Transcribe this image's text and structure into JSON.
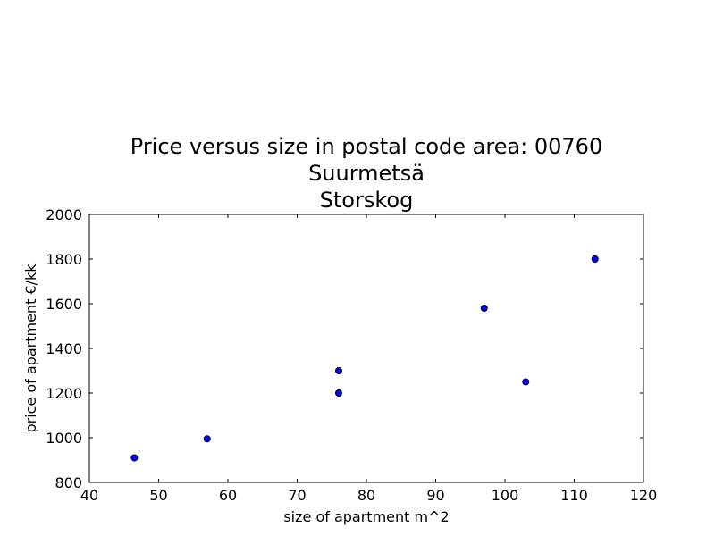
{
  "chart_data": {
    "type": "scatter",
    "title_lines": [
      "Price versus size in postal code area: 00760",
      "Suurmetsä",
      "Storskog"
    ],
    "xlabel": "size of apartment m^2",
    "ylabel": "price of apartment €/kk",
    "xlim": [
      40,
      120
    ],
    "ylim": [
      800,
      2000
    ],
    "x_ticks": [
      "40",
      "50",
      "60",
      "70",
      "80",
      "90",
      "100",
      "110",
      "120"
    ],
    "y_ticks": [
      "800",
      "1000",
      "1200",
      "1400",
      "1600",
      "1800",
      "2000"
    ],
    "grid": false,
    "marker_color": "#0000ff",
    "points": [
      {
        "x": 46.5,
        "y": 910
      },
      {
        "x": 57,
        "y": 995
      },
      {
        "x": 76,
        "y": 1200
      },
      {
        "x": 76,
        "y": 1300
      },
      {
        "x": 97,
        "y": 1580
      },
      {
        "x": 103,
        "y": 1250
      },
      {
        "x": 113,
        "y": 1800
      }
    ]
  }
}
